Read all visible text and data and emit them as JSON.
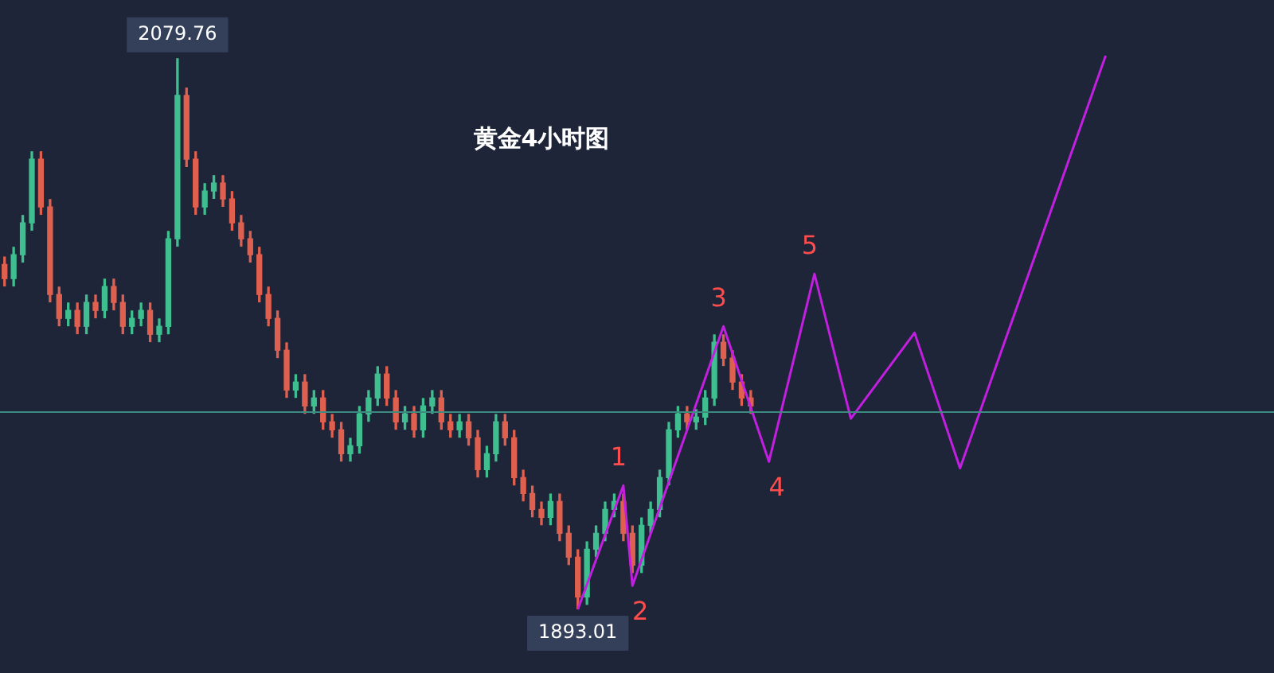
{
  "chart_data": {
    "type": "candlestick",
    "title": "黄金4小时图",
    "categories": [
      null,
      null,
      null,
      null,
      null,
      null,
      null,
      null,
      null,
      null,
      null,
      null,
      null,
      null,
      null,
      null,
      null,
      null,
      null,
      null,
      null,
      null,
      null,
      null,
      null,
      null,
      null,
      null,
      null,
      null,
      null,
      null,
      null,
      null,
      null,
      null,
      null,
      null,
      null,
      null,
      null,
      null,
      null,
      null,
      null,
      null,
      null,
      null,
      null,
      null,
      null,
      null,
      null,
      null,
      null,
      null,
      null,
      null,
      null,
      null,
      null,
      null,
      null,
      null,
      null,
      null,
      null,
      null,
      null,
      null,
      null,
      null,
      null,
      null,
      null,
      null,
      null,
      null,
      null,
      null,
      null,
      null,
      null,
      null,
      null,
      null,
      null,
      null,
      null,
      null,
      null,
      null,
      null,
      null,
      null,
      null,
      null,
      null,
      null,
      null,
      null,
      null,
      null,
      null,
      null,
      null,
      null,
      null,
      null,
      null,
      null,
      null,
      null,
      null,
      null,
      null,
      null,
      null,
      null,
      null,
      null,
      null,
      null,
      null,
      null,
      null,
      null,
      null,
      null,
      null,
      null,
      null,
      null,
      null,
      null,
      null,
      null,
      null,
      null,
      null
    ],
    "ohlc": [
      [
        2010.0,
        2012.5,
        2002.7,
        2005.2
      ],
      [
        2005.2,
        2015.8,
        2002.7,
        2013.3
      ],
      [
        2013.3,
        2026.6,
        2010.8,
        2024.1
      ],
      [
        2024.1,
        2048.2,
        2021.6,
        2045.7
      ],
      [
        2045.7,
        2048.2,
        2027.0,
        2029.5
      ],
      [
        2029.5,
        2032.0,
        1997.3,
        1999.8
      ],
      [
        1999.8,
        2002.3,
        1989.2,
        1991.7
      ],
      [
        1991.7,
        1996.9,
        1989.2,
        1994.4
      ],
      [
        1994.4,
        1996.9,
        1986.5,
        1989.0
      ],
      [
        1989.0,
        1999.6,
        1986.5,
        1997.1
      ],
      [
        1997.1,
        1999.6,
        1991.9,
        1994.4
      ],
      [
        1994.4,
        2005.0,
        1991.9,
        2002.5
      ],
      [
        2002.5,
        2005.0,
        1994.6,
        1997.1
      ],
      [
        1997.1,
        1999.6,
        1986.5,
        1989.0
      ],
      [
        1989.0,
        1994.2,
        1986.5,
        1991.7
      ],
      [
        1991.7,
        1996.9,
        1989.2,
        1994.4
      ],
      [
        1994.4,
        1996.9,
        1983.8,
        1986.3
      ],
      [
        1986.3,
        1991.5,
        1983.8,
        1989.0
      ],
      [
        1989.0,
        2021.2,
        1986.5,
        2018.7
      ],
      [
        2018.7,
        2079.76,
        2016.2,
        2067.3
      ],
      [
        2067.3,
        2069.8,
        2043.2,
        2045.7
      ],
      [
        2045.7,
        2048.2,
        2027.0,
        2029.5
      ],
      [
        2029.5,
        2037.4,
        2027.0,
        2034.9
      ],
      [
        2034.9,
        2040.1,
        2032.4,
        2037.6
      ],
      [
        2037.6,
        2040.1,
        2029.7,
        2032.2
      ],
      [
        2032.2,
        2034.7,
        2021.6,
        2024.1
      ],
      [
        2024.1,
        2026.6,
        2016.2,
        2018.7
      ],
      [
        2018.7,
        2021.2,
        2010.8,
        2013.3
      ],
      [
        2013.3,
        2015.8,
        1997.3,
        1999.8
      ],
      [
        1999.8,
        2002.3,
        1989.2,
        1991.7
      ],
      [
        1991.7,
        1994.2,
        1978.4,
        1980.9
      ],
      [
        1980.9,
        1983.4,
        1964.9,
        1967.4
      ],
      [
        1967.4,
        1972.6,
        1964.9,
        1970.1
      ],
      [
        1970.1,
        1972.6,
        1959.5,
        1962.0
      ],
      [
        1962.0,
        1967.2,
        1959.5,
        1964.7
      ],
      [
        1964.7,
        1967.2,
        1954.1,
        1956.6
      ],
      [
        1956.6,
        1959.1,
        1951.4,
        1953.9
      ],
      [
        1953.9,
        1956.4,
        1943.3,
        1945.8
      ],
      [
        1945.8,
        1951.0,
        1943.3,
        1948.5
      ],
      [
        1948.5,
        1961.8,
        1946.0,
        1959.3
      ],
      [
        1959.3,
        1967.2,
        1956.8,
        1964.7
      ],
      [
        1964.7,
        1975.3,
        1962.2,
        1972.8
      ],
      [
        1972.8,
        1975.3,
        1962.2,
        1964.7
      ],
      [
        1964.7,
        1967.2,
        1954.1,
        1956.6
      ],
      [
        1956.6,
        1961.8,
        1954.1,
        1959.3
      ],
      [
        1959.3,
        1961.8,
        1951.4,
        1953.9
      ],
      [
        1953.9,
        1964.5,
        1951.4,
        1962.0
      ],
      [
        1962.0,
        1967.2,
        1959.5,
        1964.7
      ],
      [
        1964.7,
        1967.2,
        1954.1,
        1956.6
      ],
      [
        1956.6,
        1959.1,
        1951.4,
        1953.9
      ],
      [
        1953.9,
        1959.1,
        1951.4,
        1956.6
      ],
      [
        1956.6,
        1959.1,
        1948.7,
        1951.2
      ],
      [
        1951.2,
        1953.7,
        1937.9,
        1940.4
      ],
      [
        1940.4,
        1948.3,
        1937.9,
        1945.8
      ],
      [
        1945.8,
        1959.1,
        1943.3,
        1956.6
      ],
      [
        1956.6,
        1959.1,
        1948.7,
        1951.2
      ],
      [
        1951.2,
        1953.7,
        1935.2,
        1937.7
      ],
      [
        1937.7,
        1940.2,
        1929.8,
        1932.3
      ],
      [
        1932.3,
        1934.8,
        1924.4,
        1926.9
      ],
      [
        1926.9,
        1929.4,
        1921.7,
        1924.2
      ],
      [
        1924.2,
        1932.1,
        1921.7,
        1929.6
      ],
      [
        1929.6,
        1932.1,
        1916.3,
        1918.8
      ],
      [
        1918.8,
        1921.3,
        1908.2,
        1910.7
      ],
      [
        1910.7,
        1913.2,
        1893.01,
        1897.2
      ],
      [
        1897.2,
        1915.9,
        1894.7,
        1913.4
      ],
      [
        1913.4,
        1921.3,
        1910.9,
        1918.8
      ],
      [
        1918.8,
        1929.4,
        1916.3,
        1926.9
      ],
      [
        1926.9,
        1932.1,
        1924.4,
        1929.6
      ],
      [
        1929.6,
        1932.1,
        1916.3,
        1918.8
      ],
      [
        1918.8,
        1921.3,
        1905.5,
        1908.0
      ],
      [
        1908.0,
        1924.0,
        1905.5,
        1921.5
      ],
      [
        1921.5,
        1929.4,
        1919.0,
        1926.9
      ],
      [
        1926.9,
        1940.2,
        1924.4,
        1937.7
      ],
      [
        1937.7,
        1956.4,
        1935.2,
        1953.9
      ],
      [
        1953.9,
        1961.8,
        1951.4,
        1959.3
      ],
      [
        1959.3,
        1961.8,
        1954.1,
        1956.6
      ],
      [
        1956.6,
        1960.7,
        1954.1,
        1958.2
      ],
      [
        1958.2,
        1967.2,
        1955.7,
        1964.7
      ],
      [
        1964.7,
        1986.1,
        1962.2,
        1983.6
      ],
      [
        1983.6,
        1986.1,
        1975.7,
        1978.2
      ],
      [
        1978.2,
        1980.7,
        1967.6,
        1970.1
      ],
      [
        1970.1,
        1972.6,
        1962.2,
        1964.7
      ],
      [
        1964.7,
        1967.2,
        1959.5,
        1962.0
      ],
      null,
      null,
      null,
      null,
      null,
      null,
      null,
      null,
      null,
      null,
      null,
      null,
      null,
      null,
      null,
      null,
      null,
      null,
      null,
      null,
      null,
      null,
      null,
      null,
      null,
      null,
      null,
      null,
      null,
      null,
      null,
      null,
      null,
      null,
      null,
      null,
      null,
      null,
      null,
      null,
      null,
      null,
      null,
      null,
      null,
      null,
      null,
      null,
      null,
      null,
      null,
      null,
      null,
      null,
      null,
      null,
      null
    ],
    "series": [
      {
        "type": "line",
        "color": "#c21fe0",
        "values": [
          null,
          null,
          null,
          null,
          null,
          null,
          null,
          null,
          null,
          null,
          null,
          null,
          null,
          null,
          null,
          null,
          null,
          null,
          null,
          null,
          null,
          null,
          null,
          null,
          null,
          null,
          null,
          null,
          null,
          null,
          null,
          null,
          null,
          null,
          null,
          null,
          null,
          null,
          null,
          null,
          null,
          null,
          null,
          null,
          null,
          null,
          null,
          null,
          null,
          null,
          null,
          null,
          null,
          null,
          null,
          null,
          null,
          null,
          null,
          null,
          null,
          null,
          null,
          1893.0,
          null,
          null,
          null,
          null,
          1935.0,
          1901.0,
          null,
          null,
          null,
          null,
          null,
          null,
          null,
          null,
          null,
          1989.0,
          null,
          null,
          null,
          null,
          1943.1,
          null,
          null,
          null,
          null,
          2006.8,
          null,
          null,
          null,
          1957.7,
          null,
          null,
          null,
          null,
          null,
          null,
          1986.8,
          null,
          null,
          null,
          null,
          1940.9,
          null,
          null,
          null,
          null,
          null,
          null,
          null,
          null,
          null,
          null,
          null,
          null,
          null,
          null,
          null,
          2080.8,
          null,
          null,
          null,
          null,
          null,
          null,
          null,
          null,
          null,
          null,
          null,
          null,
          null,
          null,
          null,
          null,
          null,
          null
        ]
      }
    ],
    "tick_labels": false,
    "ref_lines": [
      {
        "axis": "y",
        "value": 1959.9,
        "color": "#3d8a80"
      }
    ],
    "annotations": [
      {
        "text": "2079.76",
        "y": 2079.76
      },
      {
        "text": "1893.01",
        "y": 1893.01
      },
      {
        "text": "1",
        "y": 1935.0
      },
      {
        "text": "2",
        "y": 1901.0
      },
      {
        "text": "3",
        "y": 1989.0
      },
      {
        "text": "4",
        "y": 1943.1
      },
      {
        "text": "5",
        "y": 2006.8
      }
    ]
  }
}
